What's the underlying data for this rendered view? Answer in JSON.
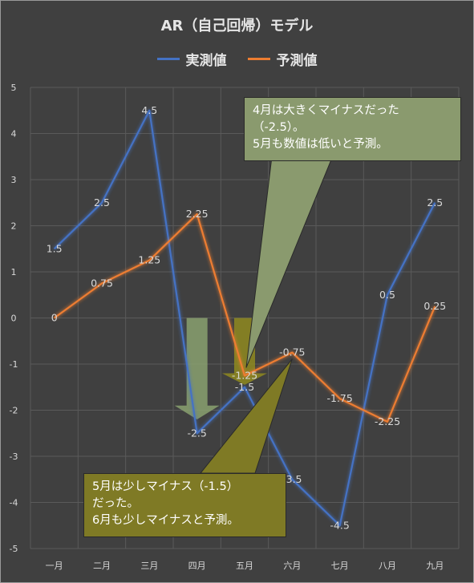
{
  "chart_data": {
    "type": "line",
    "title": "AR（自己回帰）モデル",
    "categories": [
      "一月",
      "二月",
      "三月",
      "四月",
      "五月",
      "六月",
      "七月",
      "八月",
      "九月"
    ],
    "series": [
      {
        "name": "実測値",
        "color": "#4472c4",
        "values": [
          1.5,
          2.5,
          4.5,
          -2.5,
          -1.5,
          -3.5,
          -4.5,
          0.5,
          2.5
        ],
        "labels": [
          "1.5",
          "2.5",
          "4.5",
          "-2.5",
          "-1.5",
          "-3.5",
          "-4.5",
          "0.5",
          "2.5"
        ]
      },
      {
        "name": "予測値",
        "color": "#ed7d31",
        "values": [
          0,
          0.75,
          1.25,
          2.25,
          -1.25,
          -0.75,
          -1.75,
          -2.25,
          0.25
        ],
        "labels": [
          "0",
          "0.75",
          "1.25",
          "2.25",
          "-1.25",
          "-0.75",
          "-1.75",
          "-2.25",
          "0.25"
        ]
      }
    ],
    "ylim": [
      -5,
      5
    ],
    "yticks": [
      "5",
      "4",
      "3",
      "2",
      "1",
      "0",
      "-1",
      "-2",
      "-3",
      "-4",
      "-5"
    ],
    "grid": true,
    "legend_position": "top"
  },
  "annotations": {
    "callout_top": "4月は大きくマイナスだった\n（-2.5）。\n5月も数値は低いと予測。",
    "callout_bottom": "5月は少しマイナス（-1.5）\nだった。\n6月も少しマイナスと予測。",
    "top_color": "#8a9a6e",
    "bottom_color": "#7f7a25",
    "arrow_colors": [
      "#8aa170",
      "#8f8a20"
    ]
  }
}
